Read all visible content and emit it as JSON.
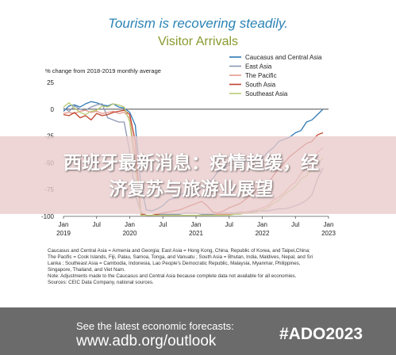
{
  "headline": "Tourism is recovering steadily.",
  "chart_data": {
    "type": "line",
    "title": "Visitor Arrivals",
    "ylabel": "% change from 2018-2019 monthly average",
    "ylim": [
      -100,
      25
    ],
    "yticks": [
      25,
      0,
      -25,
      -50,
      -75,
      -100
    ],
    "xlim": [
      0,
      48
    ],
    "xticks": [
      {
        "pos": 0,
        "line1": "Jan",
        "line2": "2019"
      },
      {
        "pos": 6,
        "line1": "Jul",
        "line2": ""
      },
      {
        "pos": 12,
        "line1": "Jan",
        "line2": "2020"
      },
      {
        "pos": 18,
        "line1": "Jul",
        "line2": ""
      },
      {
        "pos": 24,
        "line1": "Jan",
        "line2": "2021"
      },
      {
        "pos": 30,
        "line1": "Jul",
        "line2": ""
      },
      {
        "pos": 36,
        "line1": "Jan",
        "line2": "2022"
      },
      {
        "pos": 42,
        "line1": "Jul",
        "line2": ""
      },
      {
        "pos": 48,
        "line1": "Jan",
        "line2": "2023"
      }
    ],
    "legend_position": "top-right",
    "series": [
      {
        "name": "Caucasus and Central Asia",
        "color": "#2f78b4",
        "x": [
          0,
          1,
          2,
          3,
          4,
          5,
          6,
          7,
          8,
          9,
          10,
          11,
          12,
          13,
          14,
          15,
          16,
          17,
          18,
          19,
          20,
          21,
          22,
          23,
          24,
          25,
          26,
          27,
          28,
          29,
          30,
          31,
          32,
          33,
          34,
          35,
          36,
          37,
          38,
          39,
          40,
          41,
          42,
          43,
          44,
          45,
          46,
          47
        ],
        "y": [
          -2,
          3,
          4,
          2,
          5,
          7,
          6,
          4,
          3,
          5,
          2,
          1,
          -3,
          -15,
          -70,
          -94,
          -95,
          -93,
          -90,
          -85,
          -83,
          -80,
          -78,
          -76,
          -78,
          -74,
          -70,
          -65,
          -58,
          -55,
          -52,
          -52,
          -50,
          -48,
          -46,
          -44,
          -46,
          -40,
          -36,
          -30,
          -28,
          -26,
          -22,
          -20,
          -12,
          -10,
          -5,
          0
        ]
      },
      {
        "name": "East Asia",
        "color": "#8b96b4",
        "x": [
          0,
          1,
          2,
          3,
          4,
          5,
          6,
          7,
          8,
          9,
          10,
          11,
          12,
          13,
          14,
          15,
          16,
          17,
          18,
          19,
          20,
          21,
          22,
          23,
          24,
          25,
          26,
          27,
          28,
          29,
          30,
          31,
          32,
          33,
          34,
          35,
          36,
          37,
          38,
          39,
          40,
          41,
          42,
          43,
          44,
          45,
          46,
          47
        ],
        "y": [
          1,
          -2,
          3,
          0,
          -1,
          2,
          4,
          5,
          -8,
          -10,
          -12,
          -12,
          -40,
          -80,
          -96,
          -99,
          -99,
          -99,
          -98,
          -98,
          -98,
          -98,
          -97,
          -97,
          -97,
          -98,
          -98,
          -98,
          -98,
          -97,
          -97,
          -97,
          -96,
          -96,
          -96,
          -95,
          -95,
          -95,
          -94,
          -93,
          -93,
          -92,
          -90,
          -88,
          -85,
          -80,
          -65,
          -55
        ]
      },
      {
        "name": "The Pacific",
        "color": "#e49a8e",
        "x": [
          0,
          1,
          2,
          3,
          4,
          5,
          6,
          7,
          8,
          9,
          10,
          11,
          12,
          13,
          14,
          15,
          16,
          17,
          18,
          19,
          20,
          21,
          22,
          23,
          24,
          25,
          26,
          27,
          28,
          29,
          30,
          31,
          32,
          33,
          34,
          35,
          36,
          37,
          38,
          39,
          40,
          41,
          42,
          43,
          44,
          45,
          46,
          47
        ],
        "y": [
          -4,
          -3,
          -4,
          -2,
          -1,
          -3,
          -2,
          -4,
          -3,
          -2,
          -4,
          -3,
          -8,
          -45,
          -97,
          -99,
          -99,
          -99,
          -99,
          -99,
          -99,
          -99,
          -99,
          -99,
          -99,
          -99,
          -99,
          -99,
          -98,
          -98,
          -98,
          -98,
          -97,
          -96,
          -95,
          -94,
          -92,
          -90,
          -85,
          -82,
          -78,
          -72,
          -68,
          -60,
          -55,
          -50,
          -40,
          -36
        ]
      },
      {
        "name": "South Asia",
        "color": "#c1432d",
        "x": [
          0,
          1,
          2,
          3,
          4,
          5,
          6,
          7,
          8,
          9,
          10,
          11,
          12,
          13,
          14,
          15,
          16,
          17,
          18,
          19,
          20,
          21,
          22,
          23,
          24,
          25,
          26,
          27,
          28,
          29,
          30,
          31,
          32,
          33,
          34,
          35,
          36,
          37,
          38,
          39,
          40,
          41,
          42,
          43,
          44,
          45,
          46,
          47
        ],
        "y": [
          -5,
          -6,
          -3,
          -8,
          -6,
          -10,
          -4,
          -6,
          -5,
          -3,
          -2,
          -1,
          -5,
          -30,
          -98,
          -99,
          -99,
          -98,
          -97,
          -96,
          -95,
          -94,
          -92,
          -90,
          -88,
          -86,
          -90,
          -96,
          -97,
          -95,
          -92,
          -90,
          -88,
          -84,
          -80,
          -74,
          -78,
          -70,
          -62,
          -56,
          -50,
          -44,
          -40,
          -36,
          -32,
          -30,
          -24,
          -22
        ]
      },
      {
        "name": "Southeast Asia",
        "color": "#b7cc72",
        "x": [
          0,
          1,
          2,
          3,
          4,
          5,
          6,
          7,
          8,
          9,
          10,
          11,
          12,
          13,
          14,
          15,
          16,
          17,
          18,
          19,
          20,
          21,
          22,
          23,
          24,
          25,
          26,
          27,
          28,
          29,
          30,
          31,
          32,
          33,
          34,
          35,
          36,
          37,
          38,
          39,
          40,
          41,
          42,
          43,
          44,
          45,
          46,
          47
        ],
        "y": [
          2,
          6,
          1,
          -3,
          -5,
          -2,
          -1,
          3,
          2,
          5,
          4,
          2,
          -12,
          -55,
          -99,
          -99,
          -99,
          -99,
          -99,
          -99,
          -99,
          -99,
          -99,
          -99,
          -99,
          -99,
          -99,
          -99,
          -99,
          -99,
          -99,
          -98,
          -98,
          -97,
          -97,
          -96,
          -94,
          -92,
          -88,
          -85,
          -80,
          -76,
          -72,
          -65,
          -62,
          -55,
          -50,
          -46
        ]
      }
    ]
  },
  "notes": [
    "Caucasus and Central Asia = Armenia and Georgia; East Asia = Hong Kong, China, Republic of Korea, and Taipei,China;",
    "The Pacific = Cook Islands, Fiji, Palau, Samoa, Tonga, and Vanuatu ; South Asia = Bhutan, India, Maldives, Nepal, and Sri",
    "Lanka ; Southeast Asia = Cambodia, Indonesia, Lao People's Democratic Republic, Malaysia, Myanmar, Philippines,",
    "Singapore, Thailand, and Viet Nam.",
    "Note: Adjustments made to the Caucasus and Central Asia because complete data not available for all economies.",
    "Sources: CEIC Data Company, national sources."
  ],
  "overlay": {
    "line1": "西班牙最新消息：疫情趋缓，经",
    "line2": "济复苏与旅游业展望"
  },
  "footer": {
    "line1": "See the latest economic forecasts:",
    "line2": "www.adb.org/outlook",
    "tag": "#ADO2023",
    "background": "#6b6b6b"
  }
}
